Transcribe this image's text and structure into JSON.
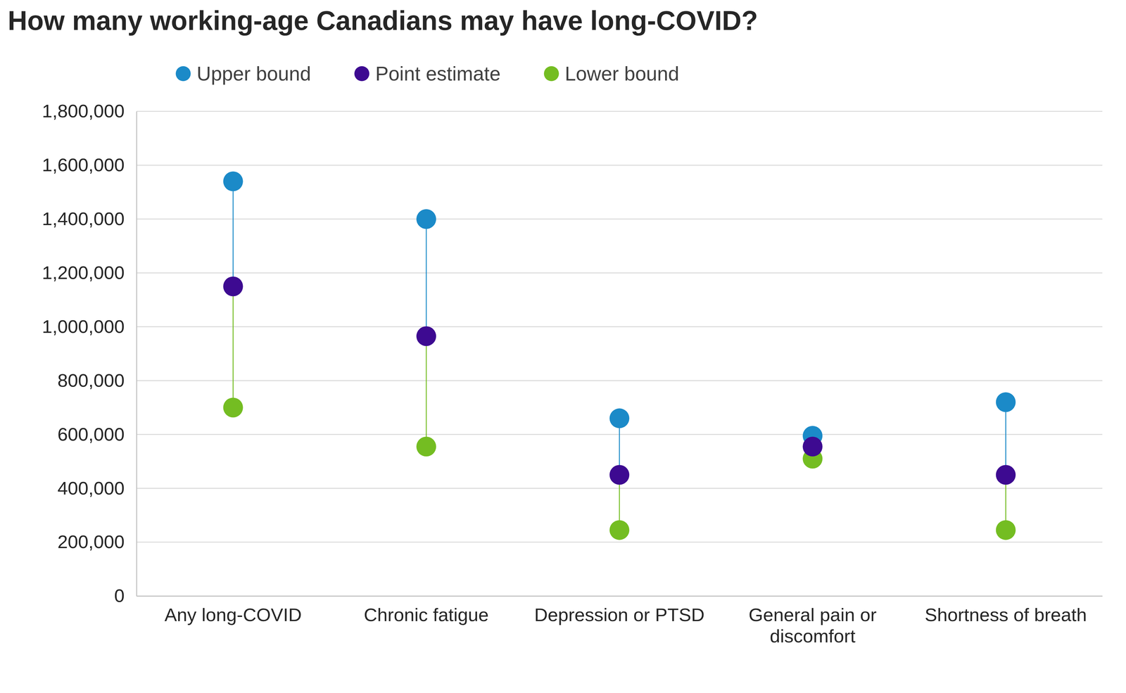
{
  "chart_data": {
    "type": "dot",
    "title": "How many working-age Canadians may have long-COVID?",
    "categories": [
      "Any long-COVID",
      "Chronic fatigue",
      "Depression or PTSD",
      "General pain or discomfort",
      "Shortness of breath"
    ],
    "series": [
      {
        "name": "Upper bound",
        "color": "#1b8ac8",
        "values": [
          1540000,
          1400000,
          660000,
          595000,
          720000
        ]
      },
      {
        "name": "Point estimate",
        "color": "#3d0a91",
        "values": [
          1150000,
          965000,
          450000,
          555000,
          450000
        ]
      },
      {
        "name": "Lower bound",
        "color": "#74bd22",
        "values": [
          700000,
          555000,
          245000,
          510000,
          245000
        ]
      }
    ],
    "ylim": [
      0,
      1800000
    ],
    "yticks": [
      0,
      {
        "value": 200000,
        "label": "200,000"
      },
      {
        "value": 400000,
        "label": "400,000"
      },
      {
        "value": 600000,
        "label": "600,000"
      },
      {
        "value": 800000,
        "label": "800,000"
      },
      {
        "value": 1000000,
        "label": "1,000,000"
      },
      {
        "value": 1200000,
        "label": "1,200,000"
      },
      {
        "value": 1400000,
        "label": "1,400,000"
      },
      {
        "value": 1600000,
        "label": "1,600,000"
      },
      {
        "value": 1800000,
        "label": "1,800,000"
      }
    ],
    "grid": true,
    "legend": "top"
  }
}
